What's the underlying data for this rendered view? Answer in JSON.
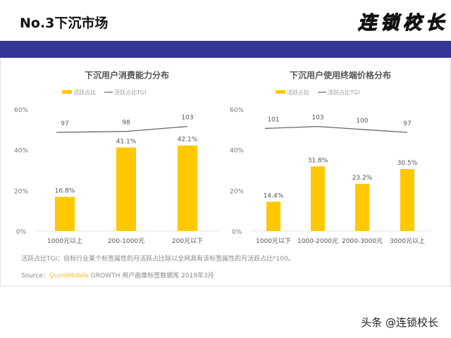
{
  "header": {
    "title": "No.3下沉市场",
    "logo_text": "连锁校长"
  },
  "colors": {
    "band": "#343695",
    "bar": "#FFC800",
    "line": "#666666"
  },
  "chart_data": [
    {
      "type": "bar",
      "title": "下沉用户消费能力分布",
      "legend": [
        "活跃占比",
        "活跃占比TGI"
      ],
      "categories": [
        "1000元以上",
        "200-1000元",
        "200元以下"
      ],
      "series": [
        {
          "name": "活跃占比",
          "values": [
            16.8,
            41.1,
            42.1
          ],
          "labels": [
            "16.8%",
            "41.1%",
            "42.1%"
          ]
        },
        {
          "name": "活跃占比TGI",
          "type": "line",
          "values": [
            97,
            98,
            103
          ]
        }
      ],
      "yticks": [
        "0%",
        "20%",
        "40%",
        "60%"
      ],
      "ylim": [
        0,
        60
      ]
    },
    {
      "type": "bar",
      "title": "下沉用户使用终端价格分布",
      "legend": [
        "活跃占比",
        "活跃占比TGI"
      ],
      "categories": [
        "1000元以下",
        "1000-2000元",
        "2000-3000元",
        "3000元以上"
      ],
      "series": [
        {
          "name": "活跃占比",
          "values": [
            14.4,
            31.8,
            23.2,
            30.5
          ],
          "labels": [
            "14.4%",
            "31.8%",
            "23.2%",
            "30.5%"
          ]
        },
        {
          "name": "活跃占比TGI",
          "type": "line",
          "values": [
            101,
            103,
            100,
            97
          ]
        }
      ],
      "yticks": [
        "0%",
        "20%",
        "40%",
        "60%"
      ],
      "ylim": [
        0,
        60
      ]
    }
  ],
  "notes": {
    "definition": "活跃占比TGI：目标行业某个标签属性的月活跃占比除以全网具有该标签属性的月活跃占比*100。",
    "source_prefix": "Source：",
    "source_brand": "QuestMobile",
    "source_rest": " GROWTH 用户画像标签数据库 2019年3月"
  },
  "credit": "头条 @连锁校长"
}
